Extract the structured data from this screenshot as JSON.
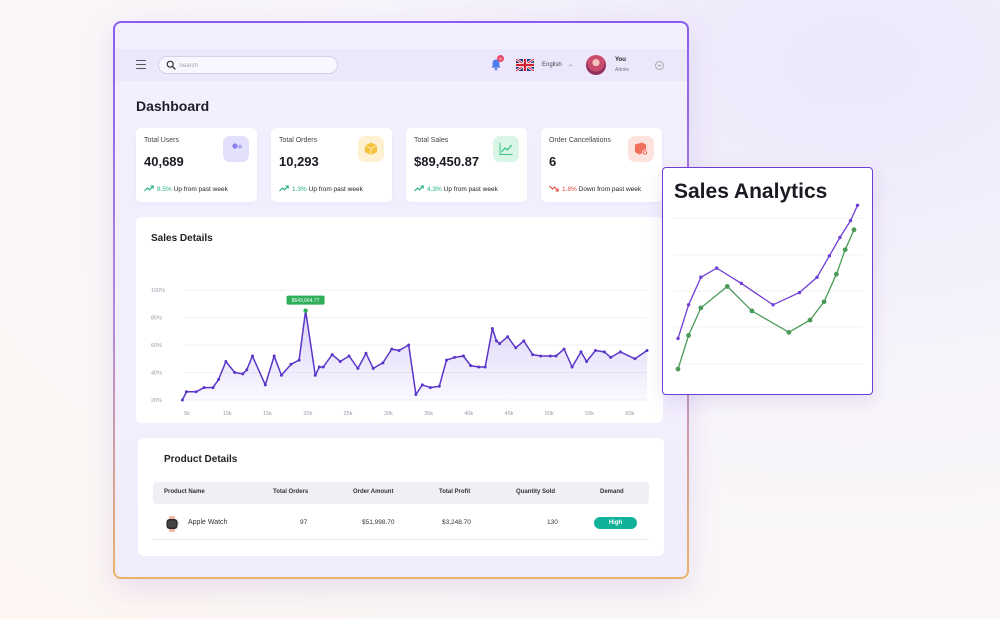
{
  "search": {
    "placeholder": "Search"
  },
  "notifications": {
    "count": "6"
  },
  "language": {
    "label": "English"
  },
  "user": {
    "name": "You",
    "role": "Admin"
  },
  "page": {
    "title": "Dashboard"
  },
  "stats": [
    {
      "label": "Total Users",
      "value": "40,689",
      "pct": "8.5%",
      "trend_text": "Up from past week",
      "direction": "up",
      "icon": "users-icon",
      "icon_bg": "#e3e0fb",
      "icon_color": "#8a7ff0"
    },
    {
      "label": "Total Orders",
      "value": "10,293",
      "pct": "1.3%",
      "trend_text": "Up from past week",
      "direction": "up",
      "icon": "box-icon",
      "icon_bg": "#fdf1d2",
      "icon_color": "#f4c23d"
    },
    {
      "label": "Total Sales",
      "value": "$89,450.87",
      "pct": "4.3%",
      "trend_text": "Up from past week",
      "direction": "up",
      "icon": "line-chart-icon",
      "icon_bg": "#d9f5e6",
      "icon_color": "#3cc487"
    },
    {
      "label": "Order Cancellations",
      "value": "6",
      "pct": "1.8%",
      "trend_text": "Down from past week",
      "direction": "down",
      "icon": "cancel-box-icon",
      "icon_bg": "#fde3dd",
      "icon_color": "#f0705c"
    }
  ],
  "sales_details": {
    "title": "Sales Details",
    "tooltip": "$643,664.77",
    "chart_data": {
      "type": "area",
      "y_ticks": [
        "20%",
        "40%",
        "60%",
        "80%",
        "100%"
      ],
      "x_ticks": [
        "5k",
        "10k",
        "15k",
        "20k",
        "25k",
        "30k",
        "35k",
        "40k",
        "45k",
        "50k",
        "55k",
        "60k"
      ],
      "ylim": [
        20,
        100
      ],
      "xlim": [
        5,
        62.5
      ],
      "x": [
        4.8,
        5.3,
        6.5,
        7.5,
        8.6,
        9.3,
        10.2,
        11.3,
        12.3,
        12.8,
        13.5,
        15.1,
        16.2,
        17.1,
        18.3,
        19.3,
        20.1,
        21.3,
        21.8,
        22.3,
        23.4,
        24.4,
        25.5,
        26.6,
        27.6,
        28.5,
        29.7,
        30.8,
        31.7,
        32.9,
        33.8,
        34.6,
        35.6,
        36.7,
        37.6,
        38.6,
        39.7,
        40.6,
        41.6,
        42.4,
        43.3,
        43.8,
        44.2,
        45.2,
        46.2,
        47.2,
        48.3,
        49.3,
        50.5,
        51.2,
        52.2,
        53.2,
        54.3,
        55.0,
        56.1,
        57.2,
        58.0,
        59.2,
        61.0,
        62.5
      ],
      "y": [
        20,
        26,
        26,
        29,
        29,
        35,
        48,
        40,
        39,
        42,
        52,
        31,
        52,
        38,
        46,
        49,
        85,
        38,
        44,
        44,
        53,
        48,
        52,
        43,
        54,
        43,
        47,
        57,
        56,
        60,
        24,
        31,
        29,
        30,
        49,
        51,
        52,
        45,
        44,
        44,
        72,
        63,
        61,
        66,
        58,
        63,
        53,
        52,
        52,
        52,
        57,
        44,
        55,
        48,
        56,
        55,
        51,
        55,
        50,
        56
      ],
      "highlight_index": 16
    }
  },
  "products": {
    "title": "Product Details",
    "columns": [
      "Product Name",
      "Total Orders",
      "Order Amount",
      "Total Profit",
      "Quantity Sold",
      "Demand"
    ],
    "rows": [
      {
        "name": "Apple Watch",
        "orders": "97",
        "amount": "$51,998.70",
        "profit": "$3,248.70",
        "quantity": "130",
        "demand": "High"
      }
    ]
  },
  "analytics": {
    "title": "Sales Analytics",
    "chart_data": {
      "type": "line",
      "ylim": [
        0,
        100
      ],
      "x": [
        0,
        1,
        2,
        3,
        4,
        5,
        6,
        7,
        8
      ],
      "series": [
        {
          "color": "#6f3fd6",
          "x": [
            0,
            0.6,
            1.3,
            2.2,
            3.6,
            5.4,
            6.9,
            7.9,
            8.6,
            9.2,
            9.8,
            10.2
          ],
          "y": [
            18,
            40,
            58,
            64,
            54,
            40,
            48,
            58,
            72,
            84,
            95,
            105
          ]
        },
        {
          "color": "#4a9a58",
          "x": [
            0,
            0.6,
            1.3,
            2.8,
            4.2,
            6.3,
            7.5,
            8.3,
            9.0,
            9.5,
            10.0
          ],
          "y": [
            -2,
            20,
            38,
            52,
            36,
            22,
            30,
            42,
            60,
            76,
            89
          ]
        }
      ]
    }
  }
}
